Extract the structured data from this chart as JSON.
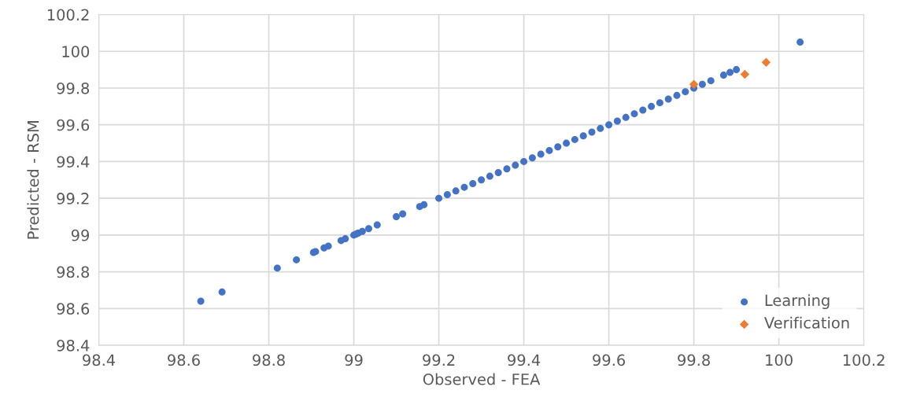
{
  "chart_data": {
    "type": "scatter",
    "xlabel": "Observed - FEA",
    "ylabel": "Predicted - RSM",
    "xlim": [
      98.4,
      100.2
    ],
    "ylim": [
      98.4,
      100.2
    ],
    "xticks": [
      98.4,
      98.6,
      98.8,
      99,
      99.2,
      99.4,
      99.6,
      99.8,
      100,
      100.2
    ],
    "yticks": [
      98.4,
      98.6,
      98.8,
      99,
      99.2,
      99.4,
      99.6,
      99.8,
      100,
      100.2
    ],
    "grid": true,
    "legend": "bottom right",
    "series": [
      {
        "name": "Learning",
        "color": "#4472c4",
        "marker": "circle",
        "x": [
          98.64,
          98.69,
          98.82,
          98.865,
          98.905,
          98.91,
          98.93,
          98.94,
          98.97,
          98.98,
          99.0,
          99.005,
          99.01,
          99.02,
          99.035,
          99.055,
          99.1,
          99.115,
          99.155,
          99.165,
          99.2,
          99.22,
          99.24,
          99.26,
          99.28,
          99.3,
          99.32,
          99.34,
          99.36,
          99.38,
          99.4,
          99.42,
          99.44,
          99.46,
          99.48,
          99.5,
          99.52,
          99.54,
          99.56,
          99.58,
          99.6,
          99.62,
          99.64,
          99.66,
          99.68,
          99.7,
          99.72,
          99.74,
          99.76,
          99.78,
          99.8,
          99.82,
          99.84,
          99.87,
          99.885,
          99.9,
          100.05
        ],
        "values": [
          98.64,
          98.69,
          98.82,
          98.865,
          98.905,
          98.91,
          98.93,
          98.94,
          98.97,
          98.98,
          99.0,
          99.005,
          99.01,
          99.02,
          99.035,
          99.055,
          99.1,
          99.115,
          99.155,
          99.165,
          99.2,
          99.22,
          99.24,
          99.26,
          99.28,
          99.3,
          99.32,
          99.34,
          99.36,
          99.38,
          99.4,
          99.42,
          99.44,
          99.46,
          99.48,
          99.5,
          99.52,
          99.54,
          99.56,
          99.58,
          99.6,
          99.62,
          99.64,
          99.66,
          99.68,
          99.7,
          99.72,
          99.74,
          99.76,
          99.78,
          99.8,
          99.82,
          99.84,
          99.87,
          99.885,
          99.9,
          100.05
        ]
      },
      {
        "name": "Verification",
        "color": "#ed7d31",
        "marker": "diamond",
        "x": [
          99.8,
          99.92,
          99.97
        ],
        "values": [
          99.82,
          99.875,
          99.94
        ]
      }
    ]
  }
}
